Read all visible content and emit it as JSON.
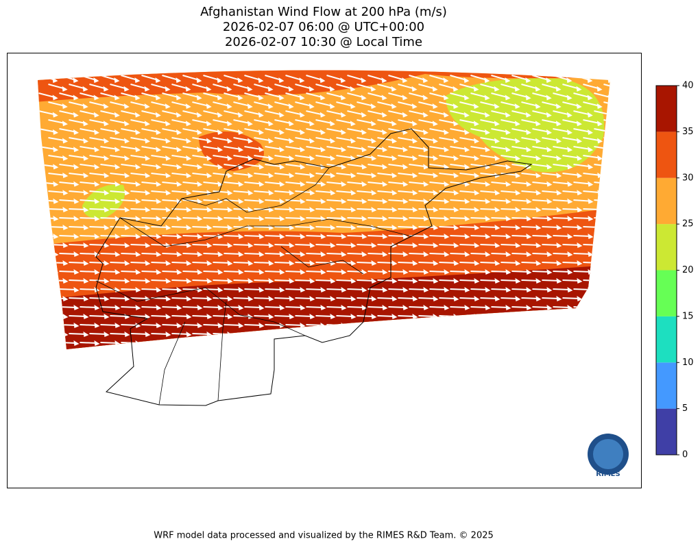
{
  "title": {
    "lines": [
      "Afghanistan Wind Flow at 200 hPa (m/s)",
      "2026-02-07 06:00 @ UTC+00:00",
      "2026-02-07 10:30 @ Local Time"
    ]
  },
  "colorbar": {
    "lim": [
      0,
      40
    ],
    "ticks": [
      0,
      5,
      10,
      15,
      20,
      25,
      30,
      35,
      40
    ],
    "colors": [
      "#3f3fa6",
      "#4499ff",
      "#1ddfc0",
      "#66ff55",
      "#cce833",
      "#ffaa33",
      "#ee5511",
      "#a81500"
    ]
  },
  "logo": {
    "text": "RIMES"
  },
  "footer": "WRF model data processed and visualized by the RIMES R&D Team. © 2025"
}
